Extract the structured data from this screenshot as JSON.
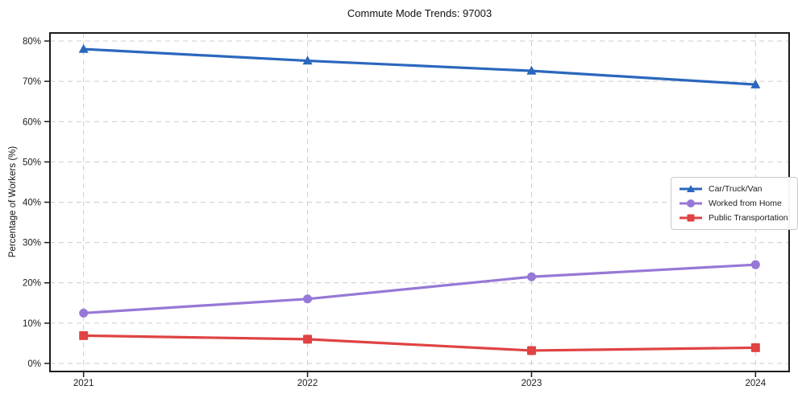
{
  "chart_data": {
    "type": "line",
    "title": "Commute Mode Trends: 97003",
    "xlabel": "",
    "ylabel": "Percentage of Workers (%)",
    "categories": [
      "2021",
      "2022",
      "2023",
      "2024"
    ],
    "x": [
      2021,
      2022,
      2023,
      2024
    ],
    "series": [
      {
        "name": "Car/Truck/Van",
        "marker": "triangle",
        "color": "#2b67bd",
        "values": [
          78.0,
          75.1,
          72.6,
          69.2
        ]
      },
      {
        "name": "Worked from Home",
        "marker": "circle",
        "color": "#9678d6",
        "values": [
          12.5,
          16.0,
          21.5,
          24.5
        ]
      },
      {
        "name": "Public Transportation",
        "marker": "square",
        "color": "#e04343",
        "values": [
          6.9,
          6.0,
          3.2,
          3.9
        ]
      }
    ],
    "xlim": [
      2020.85,
      2024.15
    ],
    "ylim": [
      -2,
      82
    ],
    "yticks": [
      0,
      10,
      20,
      30,
      40,
      50,
      60,
      70,
      80
    ],
    "ytick_suffix": "%",
    "grid": true,
    "grid_style": "dashed",
    "grid_color": "#cccccc",
    "axis_color": "#1c1c1c",
    "legend_position": "center-right",
    "background": "#ffffff"
  }
}
